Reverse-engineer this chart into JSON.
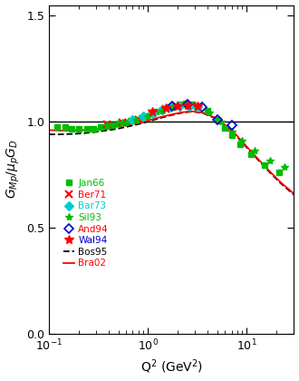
{
  "xlabel": "Q$^2$ (GeV$^2$)",
  "ylabel": "$G_{Mp}/\\mu_p G_D$",
  "xlim": [
    0.1,
    30
  ],
  "ylim": [
    0.0,
    1.55
  ],
  "yticks": [
    0.0,
    0.5,
    1.0,
    1.5
  ],
  "figsize": [
    3.3,
    4.2
  ],
  "dpi": 100,
  "Jan66": {
    "color": "#00bb00",
    "marker": "s",
    "markersize": 5,
    "label": "Jan66",
    "label_color": "#00bb00",
    "x": [
      0.12,
      0.145,
      0.17,
      0.2,
      0.24,
      0.28,
      0.33,
      0.38,
      0.44,
      0.5,
      0.58,
      0.66,
      0.75,
      0.85,
      0.95,
      1.1,
      1.2,
      1.4,
      1.6,
      1.8,
      2.1,
      2.4,
      2.8,
      3.2,
      4.0,
      5.0,
      6.0,
      7.0,
      8.5,
      11.0,
      15.0,
      21.0
    ],
    "y": [
      0.975,
      0.975,
      0.968,
      0.968,
      0.968,
      0.968,
      0.973,
      0.979,
      0.985,
      0.99,
      0.998,
      1.003,
      1.01,
      1.018,
      1.025,
      1.04,
      1.048,
      1.058,
      1.068,
      1.075,
      1.082,
      1.085,
      1.082,
      1.075,
      1.05,
      1.01,
      0.97,
      0.935,
      0.895,
      0.845,
      0.795,
      0.76
    ]
  },
  "Ber71": {
    "color": "#ff0000",
    "marker": "x",
    "markersize": 6,
    "markeredgewidth": 1.5,
    "label": "Ber71",
    "label_color": "#ff0000",
    "x": [
      0.38,
      0.55,
      0.8,
      1.1,
      1.5,
      2.0,
      2.8
    ],
    "y": [
      0.988,
      0.998,
      1.01,
      1.04,
      1.06,
      1.07,
      1.072
    ]
  },
  "Bar73": {
    "color": "#00cccc",
    "marker": "D",
    "markersize": 5,
    "label": "Bar73",
    "label_color": "#00cccc",
    "x": [
      0.7,
      0.9,
      1.1,
      1.4,
      1.7,
      2.1,
      2.6,
      3.2
    ],
    "y": [
      1.01,
      1.025,
      1.04,
      1.058,
      1.068,
      1.075,
      1.075,
      1.07
    ]
  },
  "Sil93": {
    "color": "#00bb00",
    "marker": "*",
    "markersize": 6,
    "label": "Sil93",
    "label_color": "#00bb00",
    "x": [
      0.38,
      0.55,
      0.75,
      1.0,
      1.4,
      1.8,
      2.4,
      3.2,
      4.2,
      5.5,
      7.0,
      9.0,
      12.0,
      17.0,
      24.0
    ],
    "y": [
      0.985,
      0.997,
      1.01,
      1.025,
      1.05,
      1.068,
      1.08,
      1.072,
      1.042,
      1.0,
      0.955,
      0.91,
      0.862,
      0.818,
      0.785
    ]
  },
  "And94": {
    "color": "#0000cc",
    "marker": "D",
    "markersize": 5,
    "label": "And94",
    "label_color": "#ff0000",
    "open": true,
    "x": [
      1.75,
      2.5,
      3.5,
      5.0,
      7.0
    ],
    "y": [
      1.072,
      1.08,
      1.068,
      1.01,
      0.985
    ]
  },
  "Wal94": {
    "color": "#ff0000",
    "marker": "*",
    "markersize": 7,
    "label": "Wal94",
    "label_color": "#0000cc",
    "x": [
      1.1,
      1.5,
      2.0,
      2.5,
      3.2
    ],
    "y": [
      1.048,
      1.065,
      1.075,
      1.078,
      1.072
    ]
  },
  "Bos95_x": [
    0.1,
    0.13,
    0.17,
    0.22,
    0.28,
    0.36,
    0.47,
    0.6,
    0.78,
    1.0,
    1.3,
    1.7,
    2.2,
    2.8,
    3.6,
    4.7,
    6.0,
    7.8,
    10.0,
    13.0,
    17.0,
    22.0,
    30.0
  ],
  "Bos95_y": [
    0.94,
    0.94,
    0.942,
    0.945,
    0.95,
    0.957,
    0.965,
    0.975,
    0.987,
    1.0,
    1.016,
    1.03,
    1.042,
    1.048,
    1.04,
    1.018,
    0.982,
    0.935,
    0.878,
    0.82,
    0.762,
    0.71,
    0.655
  ],
  "Bra02_x": [
    0.1,
    0.13,
    0.17,
    0.22,
    0.28,
    0.36,
    0.47,
    0.6,
    0.78,
    1.0,
    1.3,
    1.7,
    2.2,
    2.8,
    3.6,
    4.7,
    6.0,
    7.8,
    10.0,
    13.0,
    17.0,
    22.0,
    30.0
  ],
  "Bra02_y": [
    0.96,
    0.958,
    0.958,
    0.96,
    0.963,
    0.968,
    0.975,
    0.983,
    0.993,
    1.005,
    1.02,
    1.033,
    1.044,
    1.049,
    1.042,
    1.02,
    0.985,
    0.938,
    0.882,
    0.824,
    0.766,
    0.714,
    0.66
  ],
  "hline_color": "#000000",
  "legend_fontsize": 7.5,
  "axis_label_fontsize": 10,
  "tick_labelsize": 9
}
